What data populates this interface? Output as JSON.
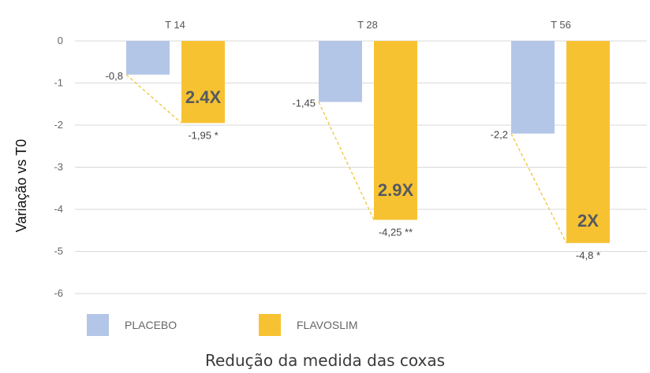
{
  "chart_data": {
    "type": "bar",
    "categories": [
      "T 14",
      "T 28",
      "T 56"
    ],
    "series": [
      {
        "name": "PLACEBO",
        "values": [
          -0.8,
          -1.45,
          -2.2
        ],
        "color": "#b4c6e7"
      },
      {
        "name": "FLAVOSLIM",
        "values": [
          -1.95,
          -4.25,
          -4.8
        ],
        "color": "#f7c232"
      }
    ],
    "data_labels": {
      "PLACEBO": [
        "-0,8",
        "-1,45",
        "-2,2"
      ],
      "FLAVOSLIM": [
        "-1,95 *",
        "-4,25 **",
        "-4,8 *"
      ]
    },
    "multipliers": [
      "2.4X",
      "2.9X",
      "2X"
    ],
    "ylabel": "Variação vs T0",
    "caption": "Redução da medida das coxas",
    "ylim": [
      -6,
      0
    ],
    "yticks": [
      0,
      -1,
      -2,
      -3,
      -4,
      -5,
      -6
    ],
    "grid": true,
    "legend_position": "bottom-left",
    "connector_color": "#f0c43a"
  }
}
